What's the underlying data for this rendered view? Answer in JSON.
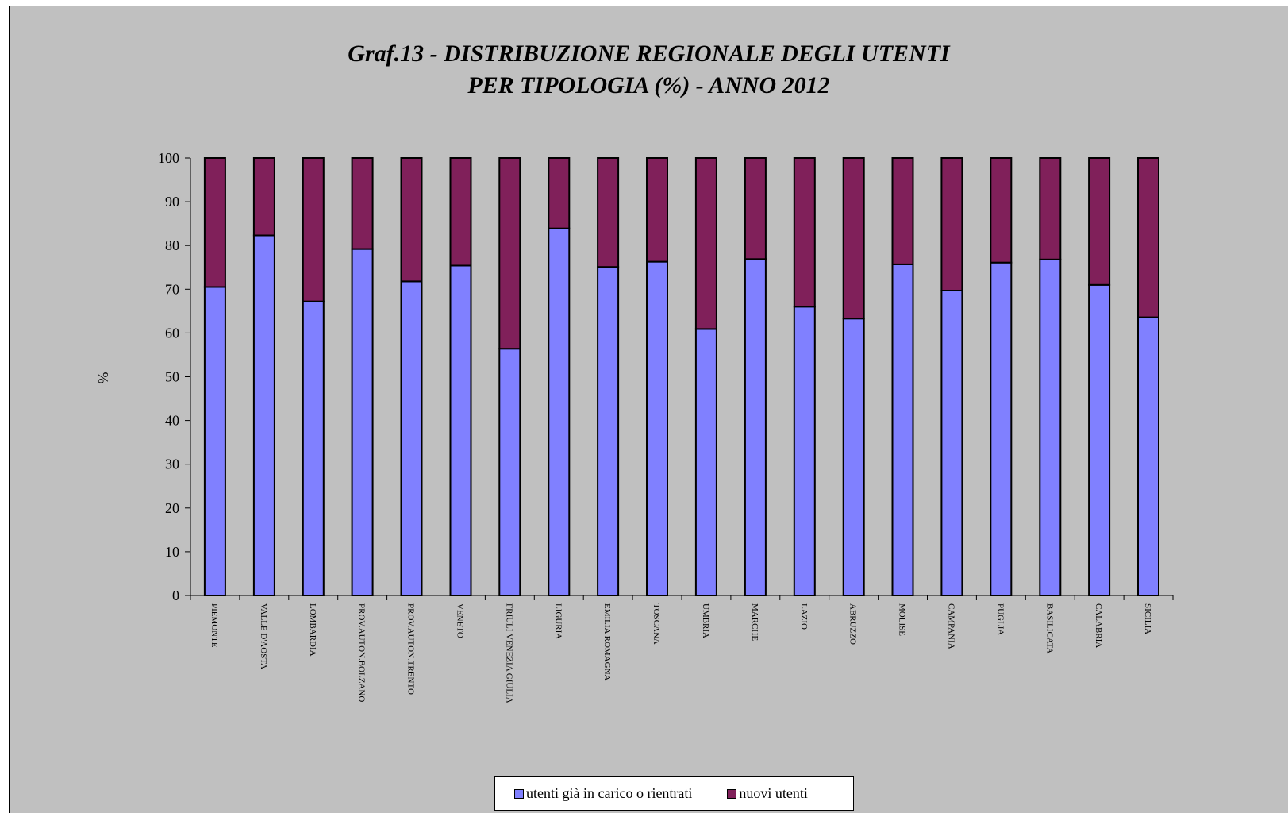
{
  "chart_data": {
    "type": "bar",
    "stacked": true,
    "title_line1": "Graf.13 - DISTRIBUZIONE REGIONALE DEGLI UTENTI",
    "title_line2": "PER TIPOLOGIA (%) - ANNO 2012",
    "xlabel": "",
    "ylabel": "%",
    "ylim": [
      0,
      100
    ],
    "yticks": [
      0,
      10,
      20,
      30,
      40,
      50,
      60,
      70,
      80,
      90,
      100
    ],
    "grid": false,
    "legend_position": "bottom",
    "categories": [
      "PIEMONTE",
      "VALLE D'AOSTA",
      "LOMBARDIA",
      "PROV.AUTON.BOLZANO",
      "PROV.AUTON.TRENTO",
      "VENETO",
      "FRIULI VENEZIA GIULIA",
      "LIGURIA",
      "EMILIA ROMAGNA",
      "TOSCANA",
      "UMBRIA",
      "MARCHE",
      "LAZIO",
      "ABRUZZO",
      "MOLISE",
      "CAMPANIA",
      "PUGLIA",
      "BASILICATA",
      "CALABRIA",
      "SICILIA"
    ],
    "series": [
      {
        "name": "utenti già in carico o rientrati",
        "color": "#8080ff",
        "values": [
          70.5,
          82.3,
          67.2,
          79.2,
          71.8,
          75.4,
          56.4,
          83.9,
          75.1,
          76.3,
          60.9,
          76.9,
          66.0,
          63.3,
          75.7,
          69.7,
          76.1,
          76.8,
          71.0,
          63.6
        ]
      },
      {
        "name": "nuovi utenti",
        "color": "#80205a",
        "values": [
          29.5,
          17.7,
          32.8,
          20.8,
          28.2,
          24.6,
          43.6,
          16.1,
          24.9,
          23.7,
          39.1,
          23.1,
          34.0,
          36.7,
          24.3,
          30.3,
          23.9,
          23.2,
          29.0,
          36.4
        ]
      }
    ]
  }
}
